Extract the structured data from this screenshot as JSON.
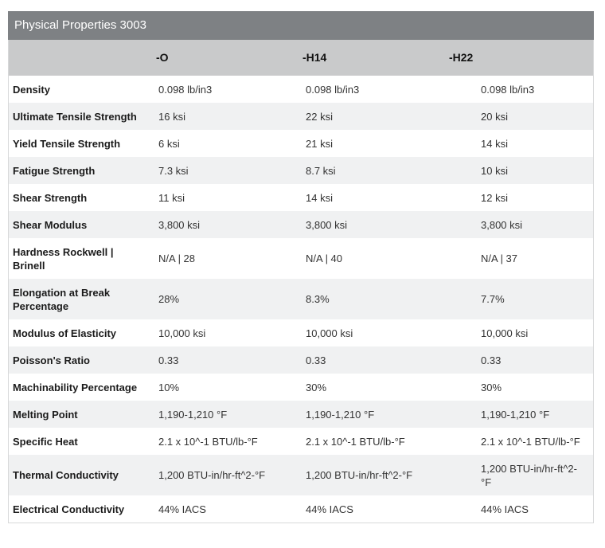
{
  "panel": {
    "title": "Physical Properties 3003"
  },
  "colors": {
    "title_bar_bg": "#7e8184",
    "title_text": "#ffffff",
    "header_bg": "#c9cacb",
    "stripe_bg": "#f0f1f2",
    "border": "#d8d9da",
    "label_text": "#1b1b1b",
    "value_text": "#333333"
  },
  "table": {
    "columns": [
      "",
      "-O",
      "-H14",
      "-H22"
    ],
    "rows": [
      {
        "label": "Density",
        "values": [
          "0.098 lb/in3",
          "0.098 lb/in3",
          "0.098 lb/in3"
        ]
      },
      {
        "label": "Ultimate Tensile Strength",
        "values": [
          "16 ksi",
          "22 ksi",
          "20 ksi"
        ]
      },
      {
        "label": "Yield Tensile Strength",
        "values": [
          "6 ksi",
          "21 ksi",
          "14 ksi"
        ]
      },
      {
        "label": "Fatigue Strength",
        "values": [
          "7.3 ksi",
          "8.7 ksi",
          "10 ksi"
        ]
      },
      {
        "label": "Shear Strength",
        "values": [
          "11 ksi",
          "14 ksi",
          "12 ksi"
        ]
      },
      {
        "label": "Shear Modulus",
        "values": [
          "3,800 ksi",
          "3,800 ksi",
          "3,800 ksi"
        ]
      },
      {
        "label": "Hardness Rockwell | Brinell",
        "values": [
          "N/A | 28",
          "N/A | 40",
          "N/A | 37"
        ]
      },
      {
        "label": "Elongation at Break Percentage",
        "values": [
          "28%",
          "8.3%",
          "7.7%"
        ]
      },
      {
        "label": "Modulus of Elasticity",
        "values": [
          "10,000 ksi",
          "10,000 ksi",
          "10,000 ksi"
        ]
      },
      {
        "label": "Poisson's Ratio",
        "values": [
          "0.33",
          "0.33",
          "0.33"
        ]
      },
      {
        "label": "Machinability Percentage",
        "values": [
          "10%",
          "30%",
          "30%"
        ]
      },
      {
        "label": "Melting Point",
        "values": [
          "1,190-1,210 °F",
          "1,190-1,210 °F",
          "1,190-1,210 °F"
        ]
      },
      {
        "label": "Specific Heat",
        "values": [
          "2.1 x 10^-1 BTU/lb-°F",
          "2.1 x 10^-1 BTU/lb-°F",
          "2.1 x 10^-1 BTU/lb-°F"
        ]
      },
      {
        "label": "Thermal Conductivity",
        "values": [
          "1,200 BTU-in/hr-ft^2-°F",
          "1,200 BTU-in/hr-ft^2-°F",
          "1,200 BTU-in/hr-ft^2-°F"
        ]
      },
      {
        "label": "Electrical Conductivity",
        "values": [
          "44% IACS",
          "44% IACS",
          "44% IACS"
        ]
      }
    ]
  }
}
